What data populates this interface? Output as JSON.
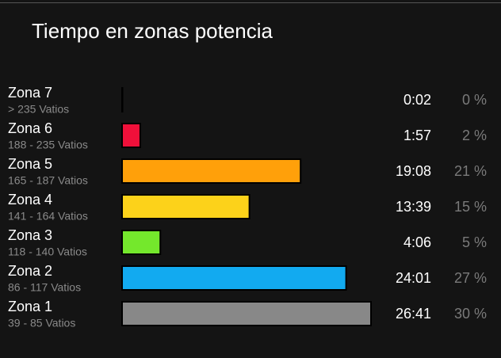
{
  "chart_data": {
    "type": "bar",
    "orientation": "horizontal",
    "title": "Tiempo en zonas potencia",
    "categories": [
      "Zona 7",
      "Zona 6",
      "Zona 5",
      "Zona 4",
      "Zona 3",
      "Zona 2",
      "Zona 1"
    ],
    "ranges": [
      "> 235 Vatios",
      "188 - 235 Vatios",
      "165 - 187 Vatios",
      "141 - 164 Vatios",
      "118 - 140 Vatios",
      "86 - 117 Vatios",
      "39 - 85 Vatios"
    ],
    "values": [
      2,
      117,
      1148,
      819,
      246,
      1441,
      1601
    ],
    "value_labels": [
      "0:02",
      "1:57",
      "19:08",
      "13:39",
      "4:06",
      "24:01",
      "26:41"
    ],
    "shares": [
      {
        "value": 0,
        "label": "0 %"
      },
      {
        "value": 2,
        "label": "2 %"
      },
      {
        "value": 21,
        "label": "21 %"
      },
      {
        "value": 15,
        "label": "15 %"
      },
      {
        "value": 5,
        "label": "5 %"
      },
      {
        "value": 27,
        "label": "27 %"
      },
      {
        "value": 30,
        "label": "30 %"
      }
    ],
    "colors": [
      "#000000",
      "#f0103a",
      "#ffa00a",
      "#fcd21a",
      "#74e82c",
      "#12aaf0",
      "#888888"
    ]
  }
}
